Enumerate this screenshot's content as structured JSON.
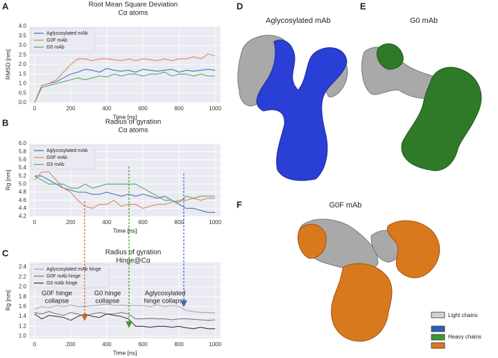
{
  "chart_data": [
    {
      "type": "line",
      "panel": "A",
      "title": "Root Mean Square Deviation",
      "subtitle": "Cα atoms",
      "x_label": "Time [ns]",
      "y_label": "RMSD [nm]",
      "grid": true,
      "legend": "upper left",
      "xlim": [
        -30,
        1030
      ],
      "xticks": [
        0,
        200,
        400,
        600,
        800,
        1000
      ],
      "ylim": [
        0,
        4.0
      ],
      "yticks": [
        {
          "value": 0,
          "label": "0.0"
        },
        {
          "value": 0.5,
          "label": "0.5"
        },
        {
          "value": 1.0,
          "label": "1.0"
        },
        {
          "value": 1.5,
          "label": "1.5"
        },
        {
          "value": 2.0,
          "label": "2.0"
        },
        {
          "value": 2.5,
          "label": "2.5"
        },
        {
          "value": 3.0,
          "label": "3.0"
        },
        {
          "value": 3.5,
          "label": "3.5"
        },
        {
          "value": 4.0,
          "label": "4.0"
        }
      ],
      "x": [
        0,
        40,
        80,
        120,
        160,
        200,
        240,
        280,
        320,
        360,
        400,
        440,
        480,
        520,
        560,
        600,
        640,
        680,
        720,
        760,
        800,
        840,
        880,
        920,
        960,
        1000
      ],
      "series": [
        {
          "name": "Aglycosylated mAb",
          "color": "#4c72b0",
          "values": [
            0,
            0.9,
            1.0,
            1.1,
            1.3,
            1.5,
            1.6,
            1.75,
            1.7,
            1.6,
            1.8,
            1.7,
            1.65,
            1.7,
            1.6,
            1.75,
            1.7,
            1.65,
            1.7,
            1.75,
            1.6,
            1.7,
            1.65,
            1.7,
            1.75,
            1.7
          ]
        },
        {
          "name": "G0F mAb",
          "color": "#dd8452",
          "values": [
            0,
            0.9,
            1.0,
            1.2,
            1.6,
            2.0,
            2.3,
            2.3,
            2.2,
            2.3,
            2.3,
            2.25,
            2.2,
            2.3,
            2.2,
            2.3,
            2.25,
            2.2,
            2.3,
            2.2,
            2.3,
            2.3,
            2.4,
            2.3,
            2.55,
            2.45
          ]
        },
        {
          "name": "G0 mAb",
          "color": "#55a868",
          "values": [
            0,
            0.8,
            0.9,
            1.0,
            1.1,
            1.2,
            1.3,
            1.2,
            1.3,
            1.4,
            1.35,
            1.5,
            1.4,
            1.5,
            1.5,
            1.4,
            1.5,
            1.5,
            1.6,
            1.4,
            1.5,
            1.5,
            1.4,
            1.5,
            1.4,
            1.4
          ]
        }
      ]
    },
    {
      "type": "line",
      "panel": "B",
      "title": "Radius of gyration",
      "subtitle": "Cα atoms",
      "x_label": "Time [ns]",
      "y_label": "Rg [nm]",
      "grid": true,
      "legend": "upper left",
      "xlim": [
        -30,
        1030
      ],
      "xticks": [
        0,
        200,
        400,
        600,
        800,
        1000
      ],
      "ylim": [
        4.2,
        6.0
      ],
      "yticks": [
        {
          "value": 4.2,
          "label": "4.2"
        },
        {
          "value": 4.4,
          "label": "4.4"
        },
        {
          "value": 4.6,
          "label": "4.6"
        },
        {
          "value": 4.8,
          "label": "4.8"
        },
        {
          "value": 5.0,
          "label": "5.0"
        },
        {
          "value": 5.2,
          "label": "5.2"
        },
        {
          "value": 5.4,
          "label": "5.4"
        },
        {
          "value": 5.6,
          "label": "5.6"
        },
        {
          "value": 5.8,
          "label": "5.8"
        },
        {
          "value": 6.0,
          "label": "6.0"
        }
      ],
      "x": [
        0,
        40,
        80,
        120,
        160,
        200,
        240,
        280,
        320,
        360,
        400,
        440,
        480,
        520,
        560,
        600,
        640,
        680,
        720,
        760,
        800,
        840,
        880,
        920,
        960,
        1000
      ],
      "series": [
        {
          "name": "Aglycosylated mAb",
          "color": "#4c72b0",
          "values": [
            5.2,
            5.2,
            5.1,
            5.0,
            4.9,
            4.85,
            4.8,
            4.8,
            4.75,
            4.75,
            4.8,
            4.75,
            4.7,
            4.75,
            4.7,
            4.75,
            4.7,
            4.65,
            4.7,
            4.6,
            4.5,
            4.4,
            4.4,
            4.35,
            4.3,
            4.3
          ]
        },
        {
          "name": "G0F mAb",
          "color": "#dd8452",
          "values": [
            5.1,
            5.3,
            5.3,
            5.1,
            4.9,
            4.8,
            4.6,
            4.45,
            4.4,
            4.5,
            4.5,
            4.6,
            4.45,
            4.5,
            4.5,
            4.4,
            4.45,
            4.5,
            4.5,
            4.55,
            4.6,
            4.6,
            4.65,
            4.6,
            4.65,
            4.65
          ]
        },
        {
          "name": "G0 mAb",
          "color": "#55a868",
          "values": [
            5.2,
            5.1,
            5.0,
            5.0,
            5.0,
            4.9,
            4.9,
            5.0,
            4.9,
            4.95,
            5.0,
            5.0,
            5.0,
            5.0,
            5.0,
            4.9,
            4.8,
            4.7,
            4.6,
            4.6,
            4.55,
            4.7,
            4.65,
            4.7,
            4.7,
            4.7
          ]
        }
      ]
    },
    {
      "type": "line",
      "panel": "C",
      "title": "Radius of gyration",
      "subtitle": "Hinge@Cα",
      "x_label": "Time [ns]",
      "y_label": "Rg [nm]",
      "grid": true,
      "legend": "upper left",
      "xlim": [
        -30,
        1030
      ],
      "xticks": [
        0,
        200,
        400,
        600,
        800,
        1000
      ],
      "ylim": [
        0.95,
        2.5
      ],
      "yticks": [
        {
          "value": 1.0,
          "label": "1.0"
        },
        {
          "value": 1.2,
          "label": "1.2"
        },
        {
          "value": 1.4,
          "label": "1.4"
        },
        {
          "value": 1.6,
          "label": "1.6"
        },
        {
          "value": 1.8,
          "label": "1.8"
        },
        {
          "value": 2.0,
          "label": "2.0"
        },
        {
          "value": 2.2,
          "label": "2.2"
        },
        {
          "value": 2.4,
          "label": "2.4"
        }
      ],
      "x": [
        0,
        40,
        80,
        120,
        160,
        200,
        240,
        280,
        320,
        360,
        400,
        440,
        480,
        520,
        560,
        600,
        640,
        680,
        720,
        760,
        800,
        840,
        880,
        920,
        960,
        1000
      ],
      "series": [
        {
          "name": "Aglycosylated mAb hinge",
          "color": "#a8a8a8",
          "values": [
            1.55,
            1.6,
            1.58,
            1.62,
            1.6,
            1.63,
            1.6,
            1.6,
            1.62,
            1.63,
            1.65,
            1.62,
            1.63,
            1.62,
            1.62,
            1.62,
            1.6,
            1.63,
            1.6,
            1.62,
            1.6,
            1.52,
            1.5,
            1.48,
            1.48,
            1.47
          ]
        },
        {
          "name": "G0F mAb hinge",
          "color": "#7a7a7a",
          "values": [
            1.48,
            1.45,
            1.5,
            1.45,
            1.42,
            1.48,
            1.45,
            1.4,
            1.45,
            1.48,
            1.45,
            1.45,
            1.48,
            1.45,
            1.35,
            1.35,
            1.36,
            1.35,
            1.35,
            1.33,
            1.35,
            1.35,
            1.34,
            1.33,
            1.32,
            1.33
          ]
        },
        {
          "name": "G0 mAb hinge",
          "color": "#3a3a3a",
          "values": [
            1.45,
            1.35,
            1.42,
            1.4,
            1.38,
            1.32,
            1.4,
            1.45,
            1.4,
            1.38,
            1.45,
            1.42,
            1.4,
            1.35,
            1.2,
            1.2,
            1.18,
            1.2,
            1.2,
            1.18,
            1.2,
            1.17,
            1.15,
            1.18,
            1.15,
            1.15
          ]
        }
      ],
      "annotations": [
        {
          "lines": [
            "G0F hinge",
            "collapse"
          ],
          "color": "#d0691f"
        },
        {
          "lines": [
            "G0 hinge",
            "collapse"
          ],
          "color": "#3a9a2a"
        },
        {
          "lines": [
            "Aglycosylated",
            "hinge collapse"
          ],
          "color": "#3d68b8"
        }
      ]
    }
  ],
  "structures": {
    "panels": [
      {
        "panel": "D",
        "label": "Aglycosylated mAb"
      },
      {
        "panel": "E",
        "label": "G0 mAb"
      },
      {
        "panel": "F",
        "label": "G0F mAb"
      }
    ],
    "chain_legend": [
      "Light chains",
      "Heavy chains"
    ]
  }
}
